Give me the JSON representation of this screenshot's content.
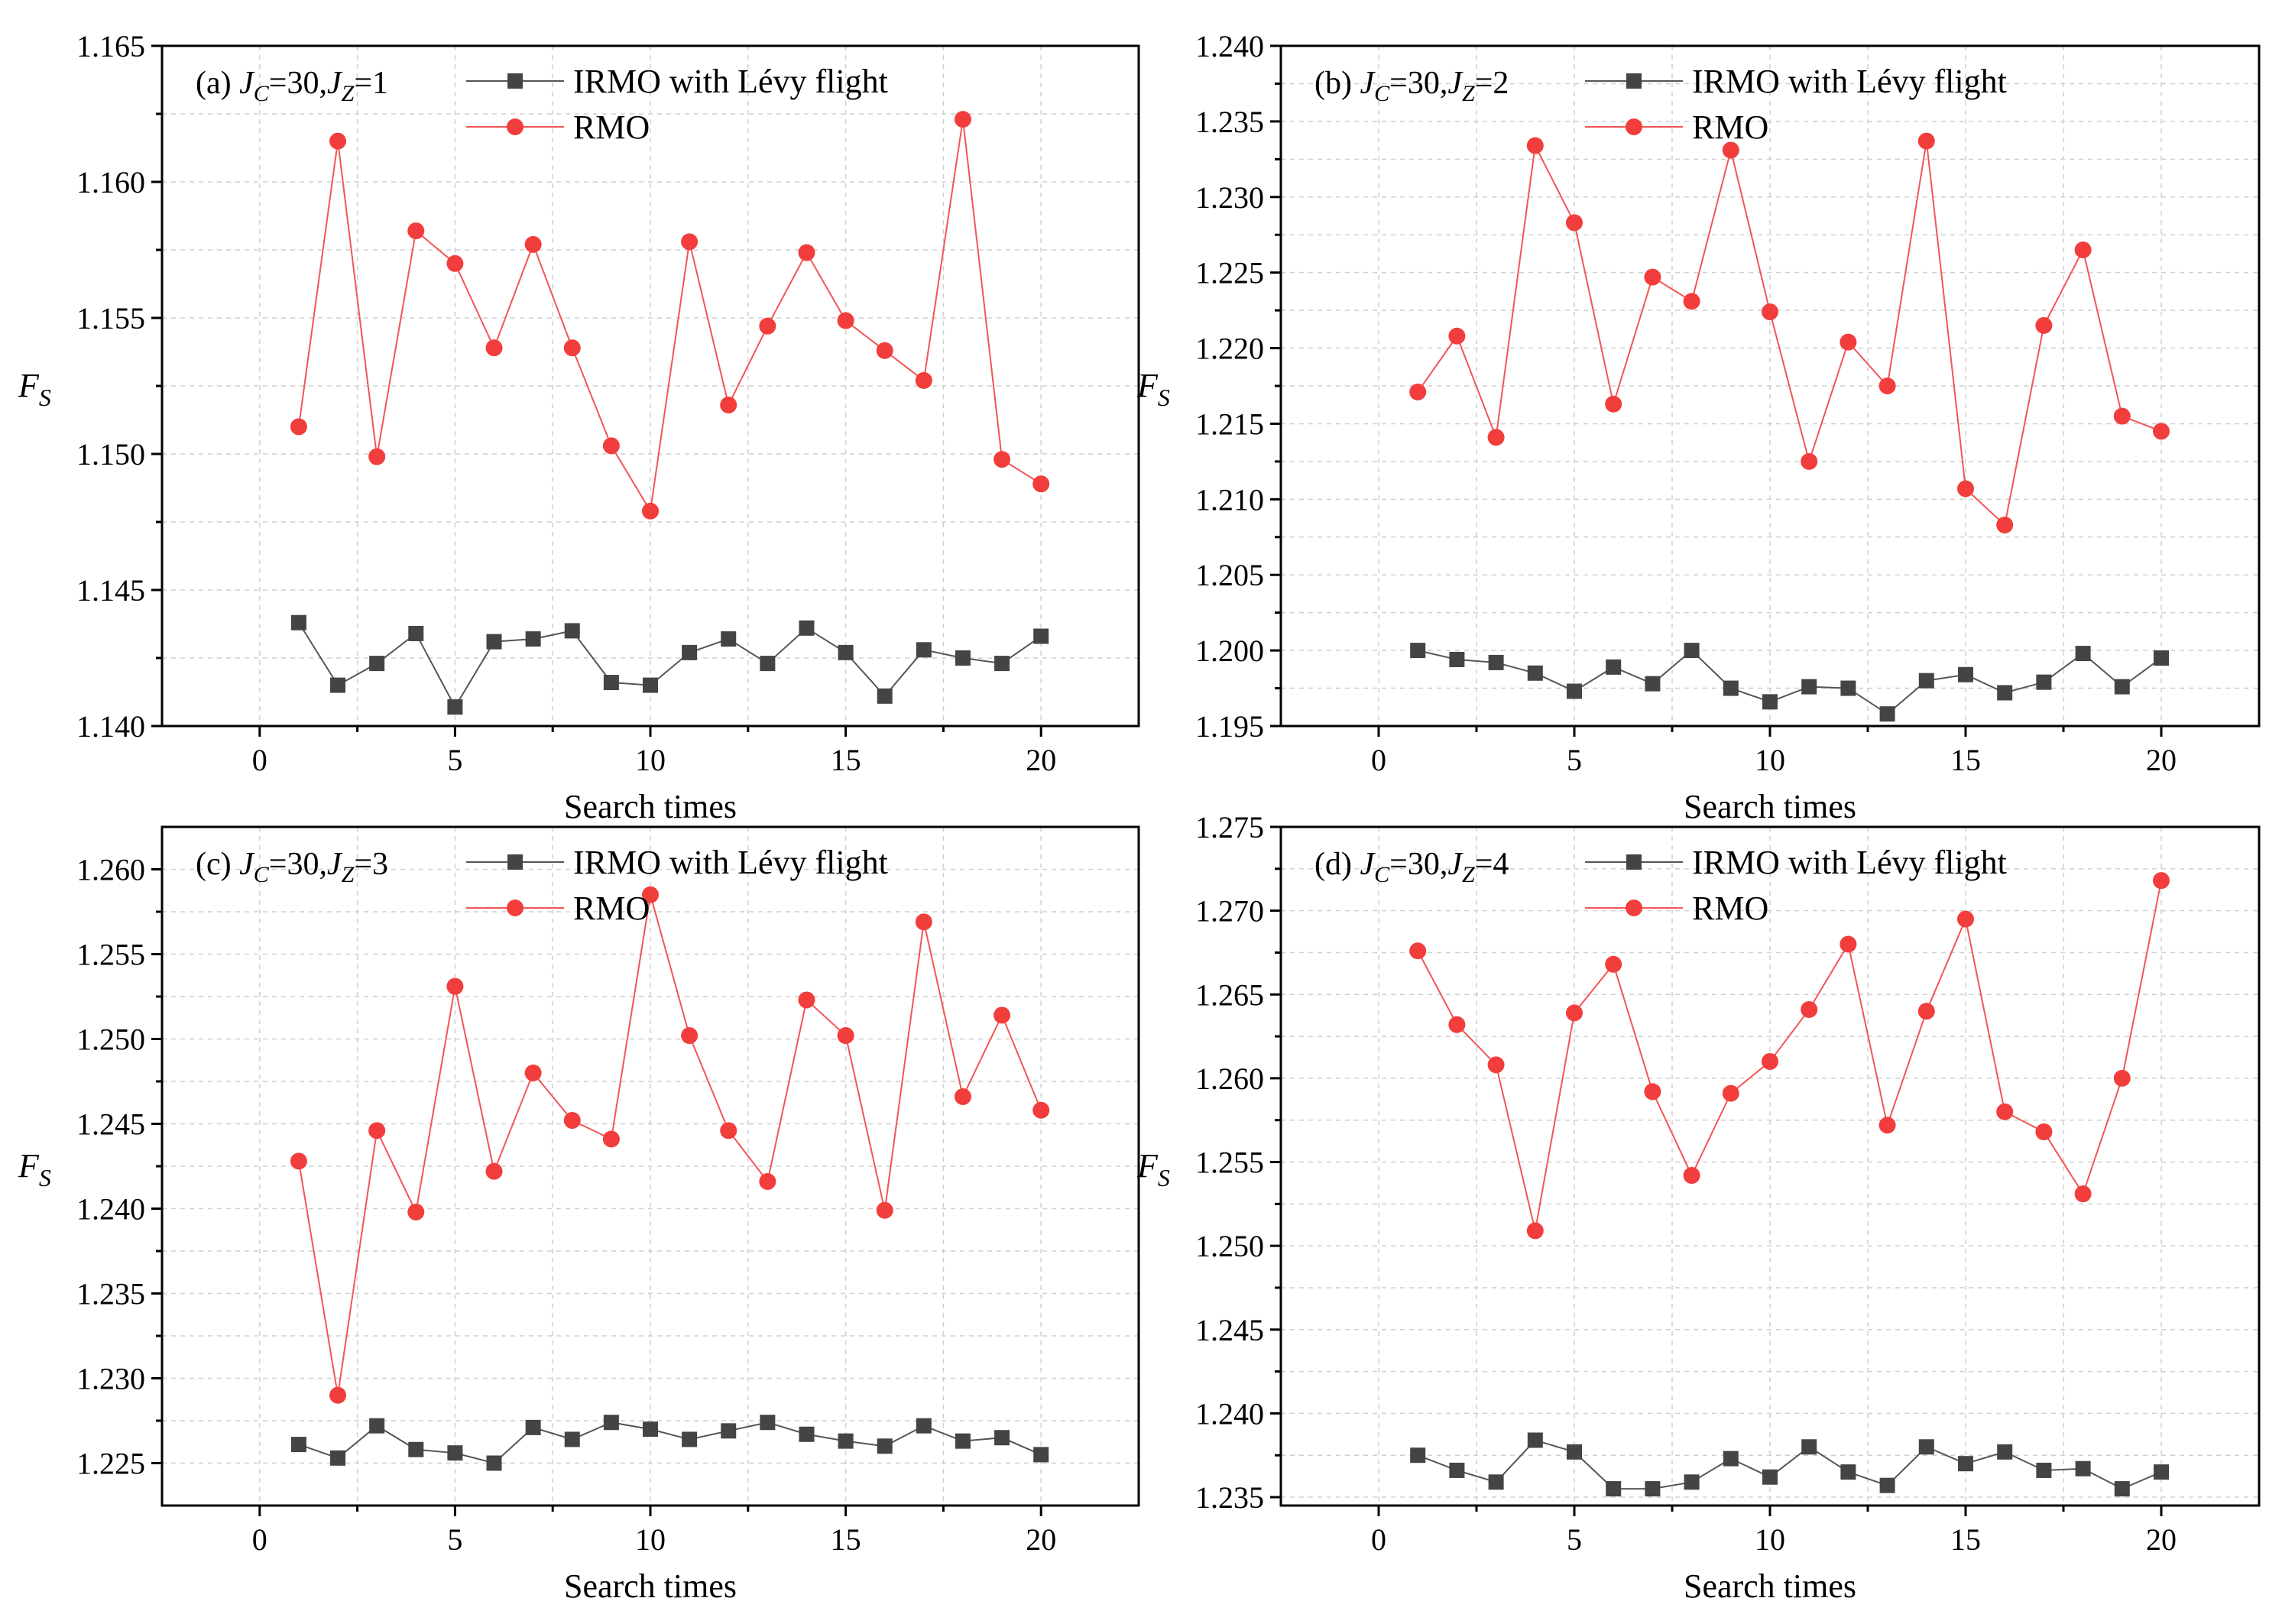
{
  "chart_data": [
    {
      "type": "line",
      "panel_label": "(a)",
      "condition": {
        "jc_value": "30",
        "jz_value": "1"
      },
      "xlabel": "Search times",
      "ylabel": "F",
      "ylabel_sub": "S",
      "xlim": [
        -2.5,
        22.5
      ],
      "ylim": [
        1.14,
        1.165
      ],
      "xticks": [
        0,
        5,
        10,
        15,
        20
      ],
      "yticks": [
        1.14,
        1.145,
        1.15,
        1.155,
        1.16,
        1.165
      ],
      "ytick_labels": [
        "1.140",
        "1.145",
        "1.150",
        "1.155",
        "1.160",
        "1.165"
      ],
      "x": [
        1,
        2,
        3,
        4,
        5,
        6,
        7,
        8,
        9,
        10,
        11,
        12,
        13,
        14,
        15,
        16,
        17,
        18,
        19,
        20
      ],
      "series": [
        {
          "name": "IRMO with Lévy flight",
          "color": "#444444",
          "marker": "square",
          "values": [
            1.1438,
            1.1415,
            1.1423,
            1.1434,
            1.1407,
            1.1431,
            1.1432,
            1.1435,
            1.1416,
            1.1415,
            1.1427,
            1.1432,
            1.1423,
            1.1436,
            1.1427,
            1.1411,
            1.1428,
            1.1425,
            1.1423,
            1.1433
          ]
        },
        {
          "name": "RMO",
          "color": "#f23d3d",
          "marker": "circle",
          "values": [
            1.151,
            1.1615,
            1.1499,
            1.1582,
            1.157,
            1.1539,
            1.1577,
            1.1539,
            1.1503,
            1.1479,
            1.1578,
            1.1518,
            1.1547,
            1.1574,
            1.1549,
            1.1538,
            1.1527,
            1.1623,
            1.1498,
            1.1489
          ]
        }
      ]
    },
    {
      "type": "line",
      "panel_label": "(b)",
      "condition": {
        "jc_value": "30",
        "jz_value": "2"
      },
      "xlabel": "Search times",
      "ylabel": "F",
      "ylabel_sub": "S",
      "xlim": [
        -2.5,
        22.5
      ],
      "ylim": [
        1.195,
        1.24
      ],
      "xticks": [
        0,
        5,
        10,
        15,
        20
      ],
      "yticks": [
        1.195,
        1.2,
        1.205,
        1.21,
        1.215,
        1.22,
        1.225,
        1.23,
        1.235,
        1.24
      ],
      "ytick_labels": [
        "1.195",
        "1.200",
        "1.205",
        "1.210",
        "1.215",
        "1.220",
        "1.225",
        "1.230",
        "1.235",
        "1.240"
      ],
      "x": [
        1,
        2,
        3,
        4,
        5,
        6,
        7,
        8,
        9,
        10,
        11,
        12,
        13,
        14,
        15,
        16,
        17,
        18,
        19,
        20
      ],
      "series": [
        {
          "name": "IRMO with Lévy flight",
          "color": "#444444",
          "marker": "square",
          "values": [
            1.2,
            1.1994,
            1.1992,
            1.1985,
            1.1973,
            1.1989,
            1.1978,
            1.2,
            1.1975,
            1.1966,
            1.1976,
            1.1975,
            1.1958,
            1.198,
            1.1984,
            1.1972,
            1.1979,
            1.1998,
            1.1976,
            1.1995
          ]
        },
        {
          "name": "RMO",
          "color": "#f23d3d",
          "marker": "circle",
          "values": [
            1.2171,
            1.2208,
            1.2141,
            1.2334,
            1.2283,
            1.2163,
            1.2247,
            1.2231,
            1.2331,
            1.2224,
            1.2125,
            1.2204,
            1.2175,
            1.2337,
            1.2107,
            1.2083,
            1.2215,
            1.2265,
            1.2155,
            1.2145
          ]
        }
      ]
    },
    {
      "type": "line",
      "panel_label": "(c)",
      "condition": {
        "jc_value": "30",
        "jz_value": "3"
      },
      "xlabel": "Search times",
      "ylabel": "F",
      "ylabel_sub": "S",
      "xlim": [
        -2.5,
        22.5
      ],
      "ylim": [
        1.2225,
        1.2625
      ],
      "xticks": [
        0,
        5,
        10,
        15,
        20
      ],
      "yticks": [
        1.225,
        1.23,
        1.235,
        1.24,
        1.245,
        1.25,
        1.255,
        1.26
      ],
      "ytick_labels": [
        "1.225",
        "1.230",
        "1.235",
        "1.240",
        "1.245",
        "1.250",
        "1.255",
        "1.260"
      ],
      "x": [
        1,
        2,
        3,
        4,
        5,
        6,
        7,
        8,
        9,
        10,
        11,
        12,
        13,
        14,
        15,
        16,
        17,
        18,
        19,
        20
      ],
      "series": [
        {
          "name": "IRMO with Lévy flight",
          "color": "#444444",
          "marker": "square",
          "values": [
            1.2261,
            1.2253,
            1.2272,
            1.2258,
            1.2256,
            1.225,
            1.2271,
            1.2264,
            1.2274,
            1.227,
            1.2264,
            1.2269,
            1.2274,
            1.2267,
            1.2263,
            1.226,
            1.2272,
            1.2263,
            1.2265,
            1.2255
          ]
        },
        {
          "name": "RMO",
          "color": "#f23d3d",
          "marker": "circle",
          "values": [
            1.2428,
            1.229,
            1.2446,
            1.2398,
            1.2531,
            1.2422,
            1.248,
            1.2452,
            1.2441,
            1.2585,
            1.2502,
            1.2446,
            1.2416,
            1.2523,
            1.2502,
            1.2399,
            1.2569,
            1.2466,
            1.2514,
            1.2458
          ]
        }
      ]
    },
    {
      "type": "line",
      "panel_label": "(d)",
      "condition": {
        "jc_value": "30",
        "jz_value": "4"
      },
      "xlabel": "Search times",
      "ylabel": "F",
      "ylabel_sub": "S",
      "xlim": [
        -2.5,
        22.5
      ],
      "ylim": [
        1.2345,
        1.275
      ],
      "xticks": [
        0,
        5,
        10,
        15,
        20
      ],
      "yticks": [
        1.235,
        1.24,
        1.245,
        1.25,
        1.255,
        1.26,
        1.265,
        1.27,
        1.275
      ],
      "ytick_labels": [
        "1.235",
        "1.240",
        "1.245",
        "1.250",
        "1.255",
        "1.260",
        "1.265",
        "1.270",
        "1.275"
      ],
      "x": [
        1,
        2,
        3,
        4,
        5,
        6,
        7,
        8,
        9,
        10,
        11,
        12,
        13,
        14,
        15,
        16,
        17,
        18,
        19,
        20
      ],
      "series": [
        {
          "name": "IRMO with Lévy flight",
          "color": "#444444",
          "marker": "square",
          "values": [
            1.2375,
            1.2366,
            1.2359,
            1.2384,
            1.2377,
            1.2355,
            1.2355,
            1.2359,
            1.2373,
            1.2362,
            1.238,
            1.2365,
            1.2357,
            1.238,
            1.237,
            1.2377,
            1.2366,
            1.2367,
            1.2355,
            1.2365
          ]
        },
        {
          "name": "RMO",
          "color": "#f23d3d",
          "marker": "circle",
          "values": [
            1.2676,
            1.2632,
            1.2608,
            1.2509,
            1.2639,
            1.2668,
            1.2592,
            1.2542,
            1.2591,
            1.261,
            1.2641,
            1.268,
            1.2572,
            1.264,
            1.2695,
            1.258,
            1.2568,
            1.2531,
            1.26,
            1.2718
          ]
        }
      ]
    }
  ]
}
